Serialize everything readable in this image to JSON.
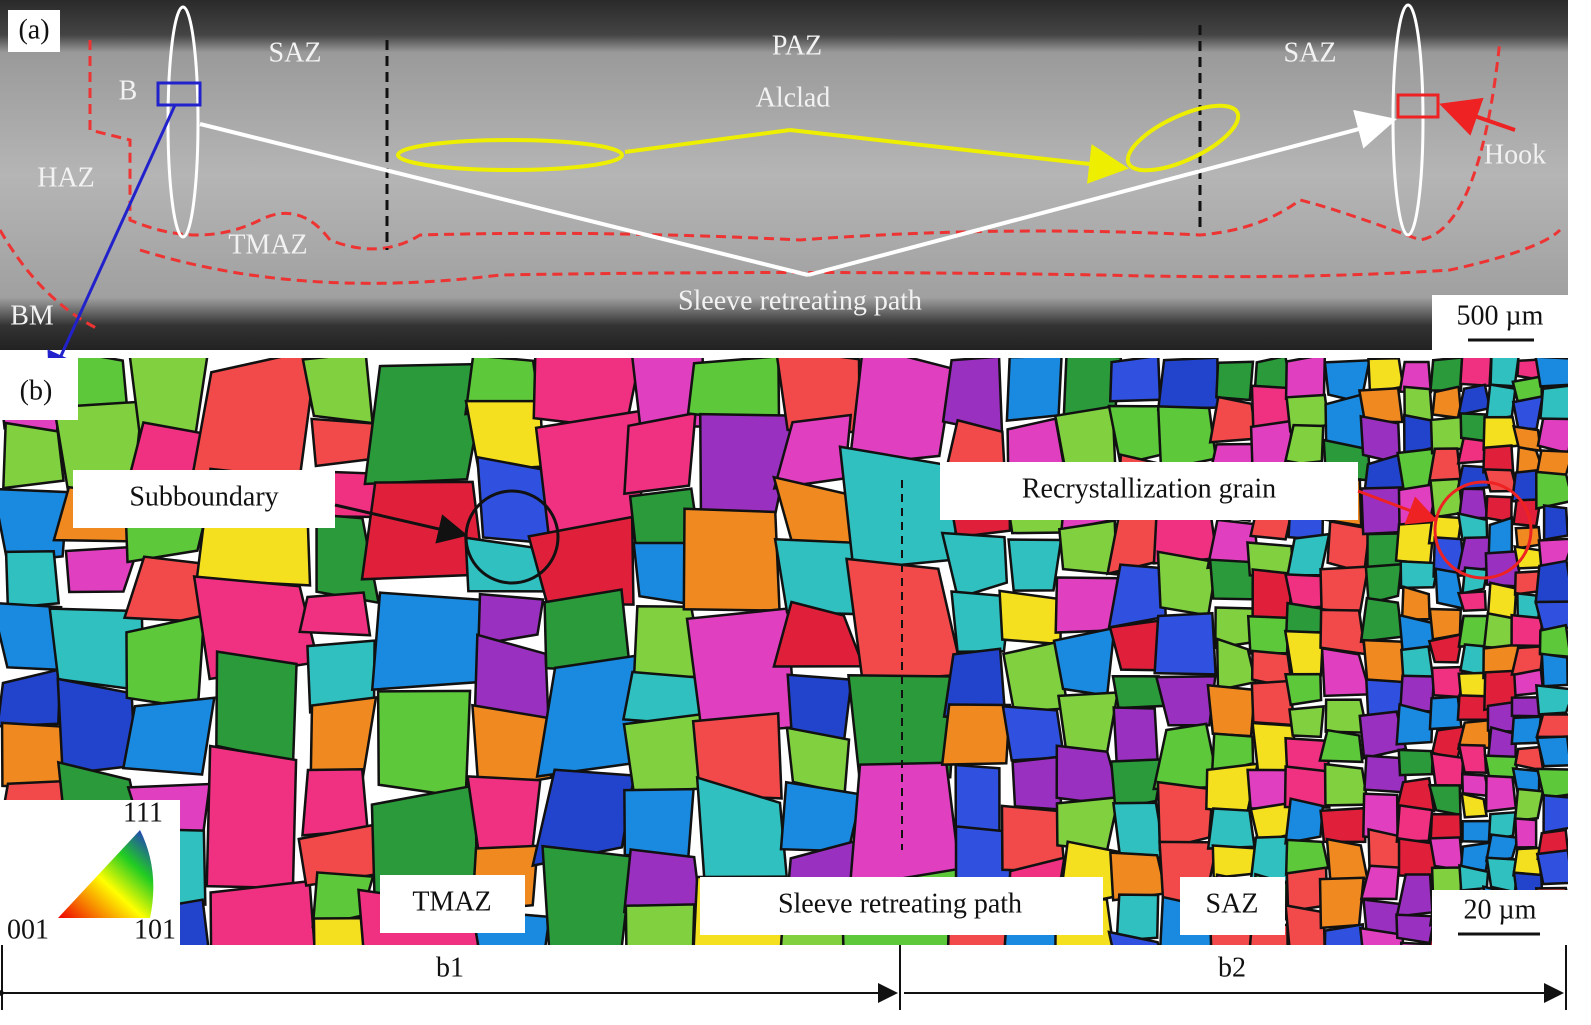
{
  "panel_a": {
    "label": "(a)",
    "zones": {
      "saz_left": "SAZ",
      "paz": "PAZ",
      "saz_right": "SAZ",
      "haz": "HAZ",
      "tmaz": "TMAZ",
      "bm": "BM"
    },
    "annotations": {
      "b_box": "B",
      "alclad": "Alclad",
      "hook": "Hook",
      "path": "Sleeve retreating path"
    },
    "scale_bar": "500 µm"
  },
  "panel_b": {
    "label": "(b)",
    "callouts": {
      "subboundary": "Subboundary",
      "recrystallization": "Recrystallization grain"
    },
    "zones": {
      "tmaz": "TMAZ",
      "path": "Sleeve retreating path",
      "saz": "SAZ"
    },
    "legend": {
      "top": "111",
      "left": "001",
      "right": "101"
    },
    "scale_bar": "20 µm"
  },
  "regions": {
    "b1": "b1",
    "b2": "b2"
  }
}
